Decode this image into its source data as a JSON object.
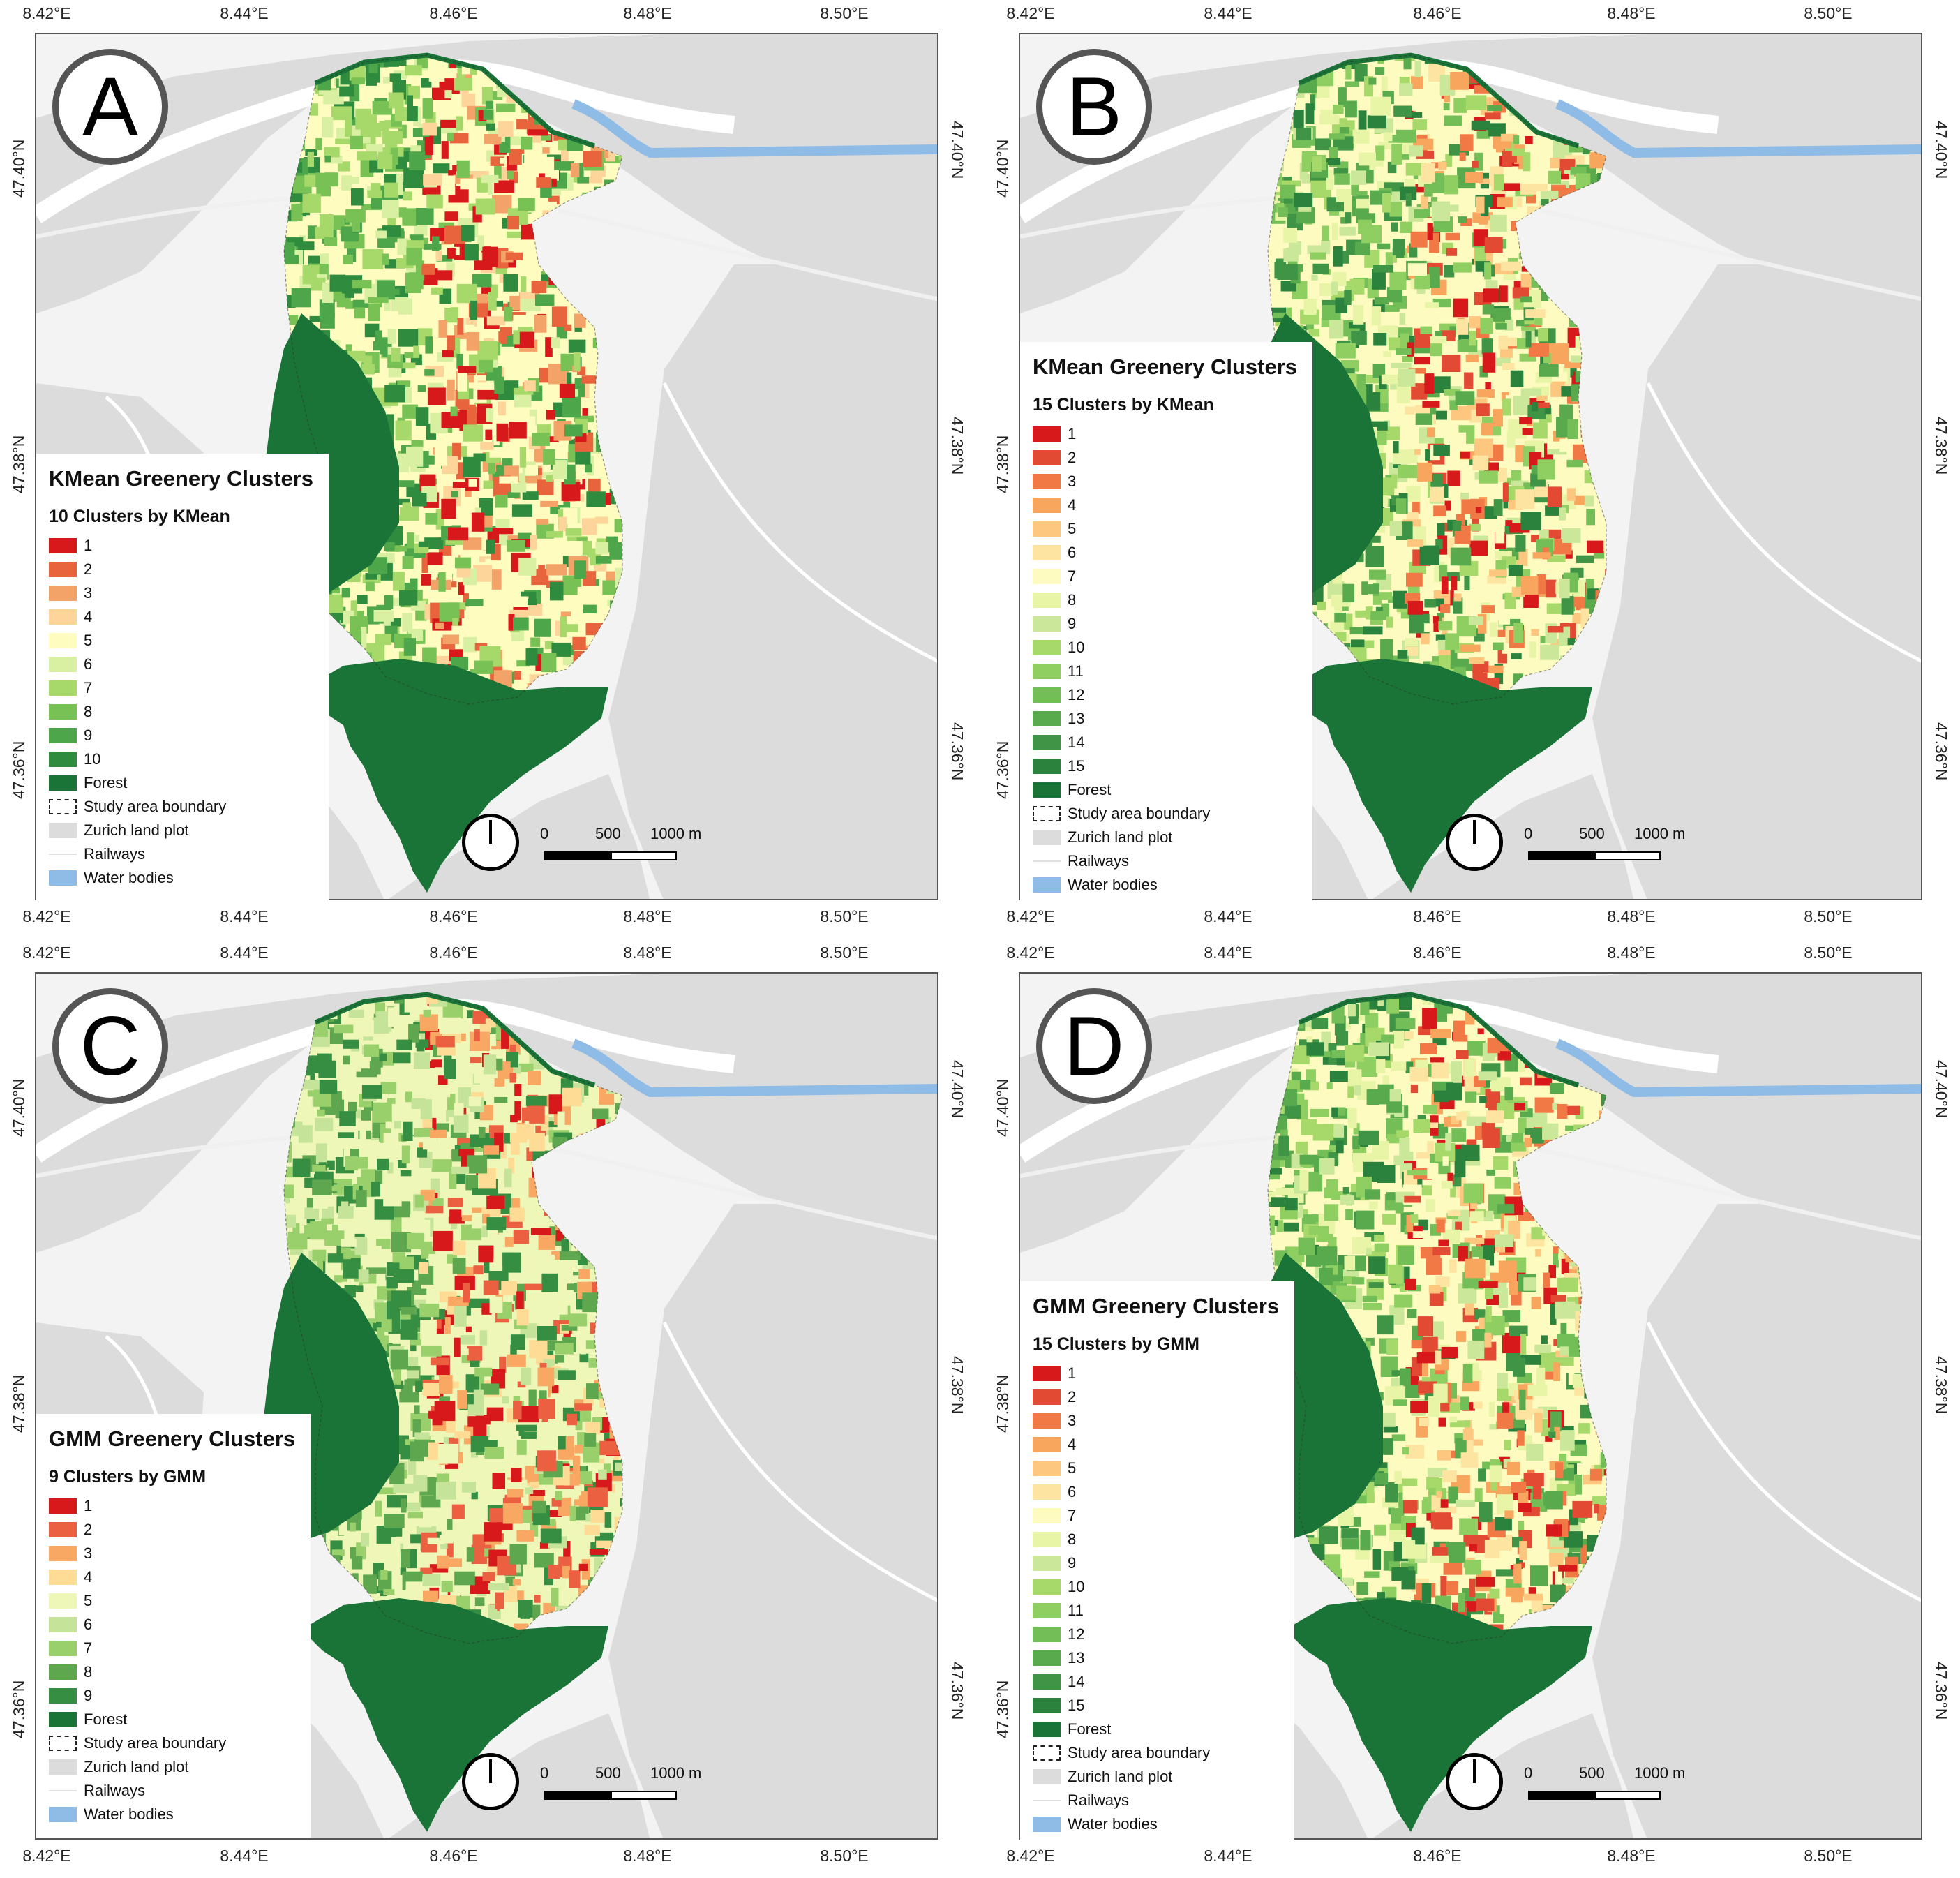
{
  "axes": {
    "x_ticks": [
      "8.42°E",
      "8.44°E",
      "8.46°E",
      "8.48°E",
      "8.50°E"
    ],
    "y_ticks": [
      "47.36°N",
      "47.38°N",
      "47.40°N"
    ]
  },
  "scale_bar": {
    "zero": "0",
    "mid": "500",
    "end": "1000 m"
  },
  "colors": {
    "land": "#dcdcdc",
    "background": "#f3f3f3",
    "forest": "#1a7437",
    "water": "#8fbce6",
    "rail": "#f0f0f0"
  },
  "palettes": {
    "kmean10": [
      "#d7191c",
      "#e8643d",
      "#f3a368",
      "#fdd59a",
      "#fefcbf",
      "#d9f0a3",
      "#a6d96a",
      "#78c155",
      "#4ea64a",
      "#2f8c3f"
    ],
    "kmean15": [
      "#d7191c",
      "#e34a33",
      "#f07946",
      "#f8a65d",
      "#fdc77f",
      "#fee4a1",
      "#fefbc0",
      "#e8f5a6",
      "#cbe89a",
      "#a6d96a",
      "#8fcf62",
      "#74be57",
      "#58aa4d",
      "#3f9545",
      "#2b823d"
    ],
    "gmm9": [
      "#d7191c",
      "#ea6040",
      "#f8a863",
      "#fedc96",
      "#eef7b8",
      "#c5e49a",
      "#99d06b",
      "#5ea74f",
      "#358e41"
    ],
    "gmm15": [
      "#d7191c",
      "#e34a33",
      "#f07946",
      "#f8a65d",
      "#fdc77f",
      "#fee4a1",
      "#fefbc0",
      "#e8f5a6",
      "#cbe89a",
      "#a6d96a",
      "#8fcf62",
      "#74be57",
      "#58aa4d",
      "#3f9545",
      "#2b823d"
    ]
  },
  "panels": [
    {
      "letter": "A",
      "legend_title": "KMean Greenery Clusters",
      "legend_subtitle": "10 Clusters by KMean",
      "palette": "kmean10",
      "classes": [
        "1",
        "2",
        "3",
        "4",
        "5",
        "6",
        "7",
        "8",
        "9",
        "10"
      ],
      "extra": [
        "Forest",
        "Study area boundary",
        "Zurich land plot",
        "Railways",
        "Water bodies"
      ]
    },
    {
      "letter": "B",
      "legend_title": "KMean Greenery Clusters",
      "legend_subtitle": "15 Clusters by KMean",
      "palette": "kmean15",
      "classes": [
        "1",
        "2",
        "3",
        "4",
        "5",
        "6",
        "7",
        "8",
        "9",
        "10",
        "11",
        "12",
        "13",
        "14",
        "15"
      ],
      "extra": [
        "Forest",
        "Study area boundary",
        "Zurich land plot",
        "Railways",
        "Water bodies"
      ]
    },
    {
      "letter": "C",
      "legend_title": "GMM Greenery Clusters",
      "legend_subtitle": "9 Clusters by GMM",
      "palette": "gmm9",
      "classes": [
        "1",
        "2",
        "3",
        "4",
        "5",
        "6",
        "7",
        "8",
        "9"
      ],
      "extra": [
        "Forest",
        "Study area boundary",
        "Zurich land plot",
        "Railways",
        "Water bodies"
      ]
    },
    {
      "letter": "D",
      "legend_title": "GMM Greenery Clusters",
      "legend_subtitle": "15 Clusters by GMM",
      "palette": "gmm15",
      "classes": [
        "1",
        "2",
        "3",
        "4",
        "5",
        "6",
        "7",
        "8",
        "9",
        "10",
        "11",
        "12",
        "13",
        "14",
        "15"
      ],
      "extra": [
        "Forest",
        "Study area boundary",
        "Zurich land plot",
        "Railways",
        "Water bodies"
      ]
    }
  ]
}
